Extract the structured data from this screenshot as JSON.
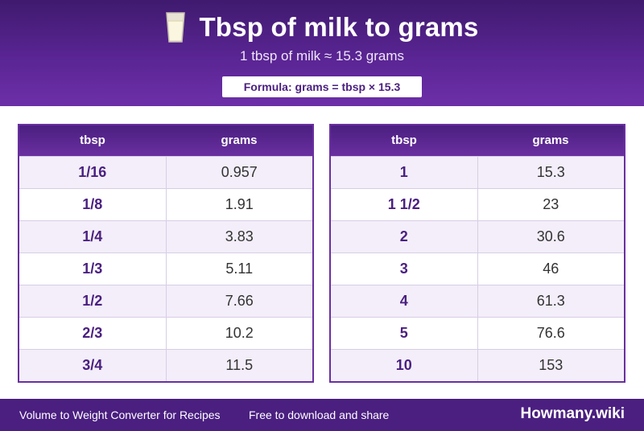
{
  "header": {
    "icon": "milk-glass-icon",
    "title": "Tbsp of milk to grams",
    "subtitle": "1 tbsp of milk ≈ 15.3 grams",
    "formula": "Formula: grams = tbsp × 15.3"
  },
  "tables": {
    "left": {
      "col1": "tbsp",
      "col2": "grams",
      "rows": [
        {
          "tbsp": "1/16",
          "grams": "0.957"
        },
        {
          "tbsp": "1/8",
          "grams": "1.91"
        },
        {
          "tbsp": "1/4",
          "grams": "3.83"
        },
        {
          "tbsp": "1/3",
          "grams": "5.11"
        },
        {
          "tbsp": "1/2",
          "grams": "7.66"
        },
        {
          "tbsp": "2/3",
          "grams": "10.2"
        },
        {
          "tbsp": "3/4",
          "grams": "11.5"
        }
      ]
    },
    "right": {
      "col1": "tbsp",
      "col2": "grams",
      "rows": [
        {
          "tbsp": "1",
          "grams": "15.3"
        },
        {
          "tbsp": "1 1/2",
          "grams": "23"
        },
        {
          "tbsp": "2",
          "grams": "30.6"
        },
        {
          "tbsp": "3",
          "grams": "46"
        },
        {
          "tbsp": "4",
          "grams": "61.3"
        },
        {
          "tbsp": "5",
          "grams": "76.6"
        },
        {
          "tbsp": "10",
          "grams": "153"
        }
      ]
    }
  },
  "footer": {
    "left_text": "Volume to Weight Converter for Recipes",
    "middle_text": "Free to download and share",
    "brand": "Howmany.wiki"
  },
  "colors": {
    "primary": "#4a1f80",
    "accent": "#6a2fa0",
    "row_alt": "#f3eef9"
  }
}
